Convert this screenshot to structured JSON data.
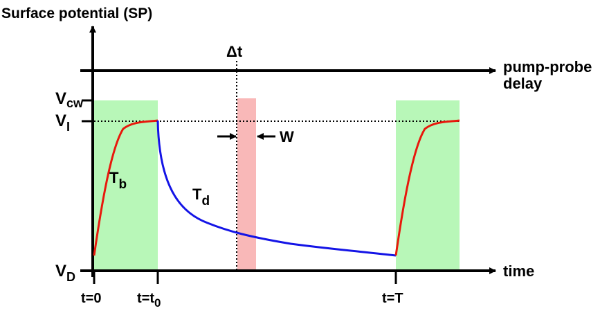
{
  "title": "Surface potential (SP)",
  "top_axis": {
    "label_line1": "pump-probe",
    "label_line2": "delay",
    "marker": "Δt"
  },
  "bottom_axis": {
    "label": "time"
  },
  "y_levels": {
    "vcw": {
      "main": "V",
      "sub": "cw"
    },
    "vi": {
      "main": "V",
      "sub": "I"
    },
    "vd": {
      "main": "V",
      "sub": "D"
    }
  },
  "ticks": {
    "t0": {
      "text": "t=0"
    },
    "tt0": {
      "main": "t=t",
      "sub": "0"
    },
    "tT": {
      "text": "t=T"
    }
  },
  "curves": {
    "tb": {
      "main": "T",
      "sub": "b",
      "color": "#e8180c"
    },
    "td": {
      "main": "T",
      "sub": "d",
      "color": "#1414e6"
    }
  },
  "pulse_width_label": "W",
  "colors": {
    "light_window": "#b8f7b8",
    "probe_pulse": "#f9b8b8",
    "axis": "#000000"
  }
}
